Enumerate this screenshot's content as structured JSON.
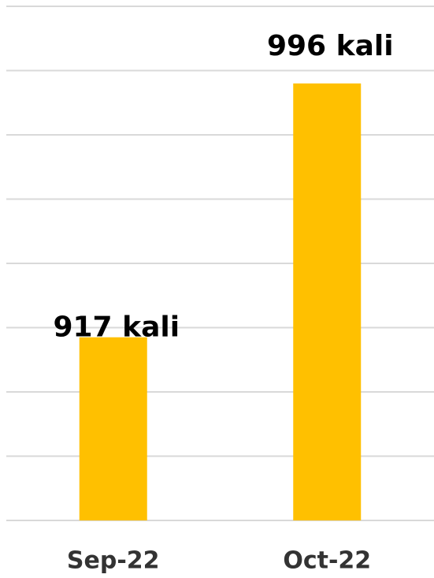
{
  "chart_data": {
    "type": "bar",
    "categories": [
      "Sep-22",
      "Oct-22"
    ],
    "values": [
      917,
      996
    ],
    "value_labels": [
      "917 kali",
      "996 kali"
    ],
    "color": "#FFC000",
    "ylim": [
      860,
      1020
    ],
    "yticks": [
      860,
      880,
      900,
      920,
      940,
      960,
      980,
      1000,
      1020
    ],
    "show_tick_labels": false,
    "grid": true
  }
}
